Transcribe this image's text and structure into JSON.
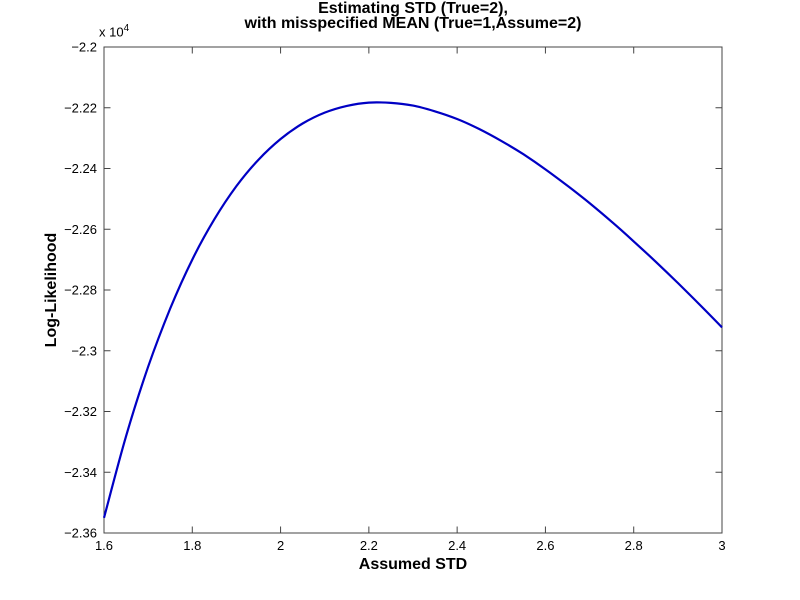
{
  "figure": {
    "title_line1": "Estimating STD (True=2),",
    "title_line2": "with misspecified MEAN (True=1,Assume=2)",
    "xlabel": "Assumed STD",
    "ylabel": "Log-Likelihood",
    "y_exponent_label": "x 10",
    "y_exponent_power": "4"
  },
  "chart_data": {
    "type": "line",
    "title": "Estimating STD (True=2), with misspecified MEAN (True=1,Assume=2)",
    "xlabel": "Assumed STD",
    "ylabel": "Log-Likelihood",
    "xlim": [
      1.6,
      3
    ],
    "ylim": [
      -23600,
      -22000
    ],
    "y_scale_exponent": 4,
    "grid": false,
    "legend": false,
    "axis_color": "#444444",
    "x_ticks": [
      1.6,
      1.8,
      2,
      2.2,
      2.4,
      2.6,
      2.8,
      3
    ],
    "x_tick_labels": [
      "1.6",
      "1.8",
      "2",
      "2.2",
      "2.4",
      "2.6",
      "2.8",
      "3"
    ],
    "y_ticks": [
      -22000,
      -22200,
      -22400,
      -22600,
      -22800,
      -23000,
      -23200,
      -23400,
      -23600
    ],
    "y_tick_labels": [
      "−2.2",
      "−2.22",
      "−2.24",
      "−2.26",
      "−2.28",
      "−2.3",
      "−2.32",
      "−2.34",
      "−2.36"
    ],
    "series": [
      {
        "name": "log-likelihood-curve",
        "color": "#0000C4",
        "line_width": 2.2,
        "x": [
          1.6,
          1.65,
          1.7,
          1.75,
          1.8,
          1.85,
          1.9,
          1.95,
          2,
          2.05,
          2.1,
          2.15,
          2.2,
          2.25,
          2.3,
          2.35,
          2.4,
          2.45,
          2.5,
          2.55,
          2.6,
          2.65,
          2.7,
          2.75,
          2.8,
          2.85,
          2.9,
          2.95,
          3
        ],
        "y": [
          -23550,
          -23281,
          -23053,
          -22861,
          -22700,
          -22567,
          -22458,
          -22371,
          -22303,
          -22252,
          -22216,
          -22194,
          -22183,
          -22184,
          -22193,
          -22212,
          -22237,
          -22270,
          -22309,
          -22353,
          -22403,
          -22457,
          -22514,
          -22575,
          -22640,
          -22707,
          -22777,
          -22849,
          -22923
        ]
      }
    ],
    "peak": {
      "x": 2.224,
      "y": -22183
    }
  }
}
